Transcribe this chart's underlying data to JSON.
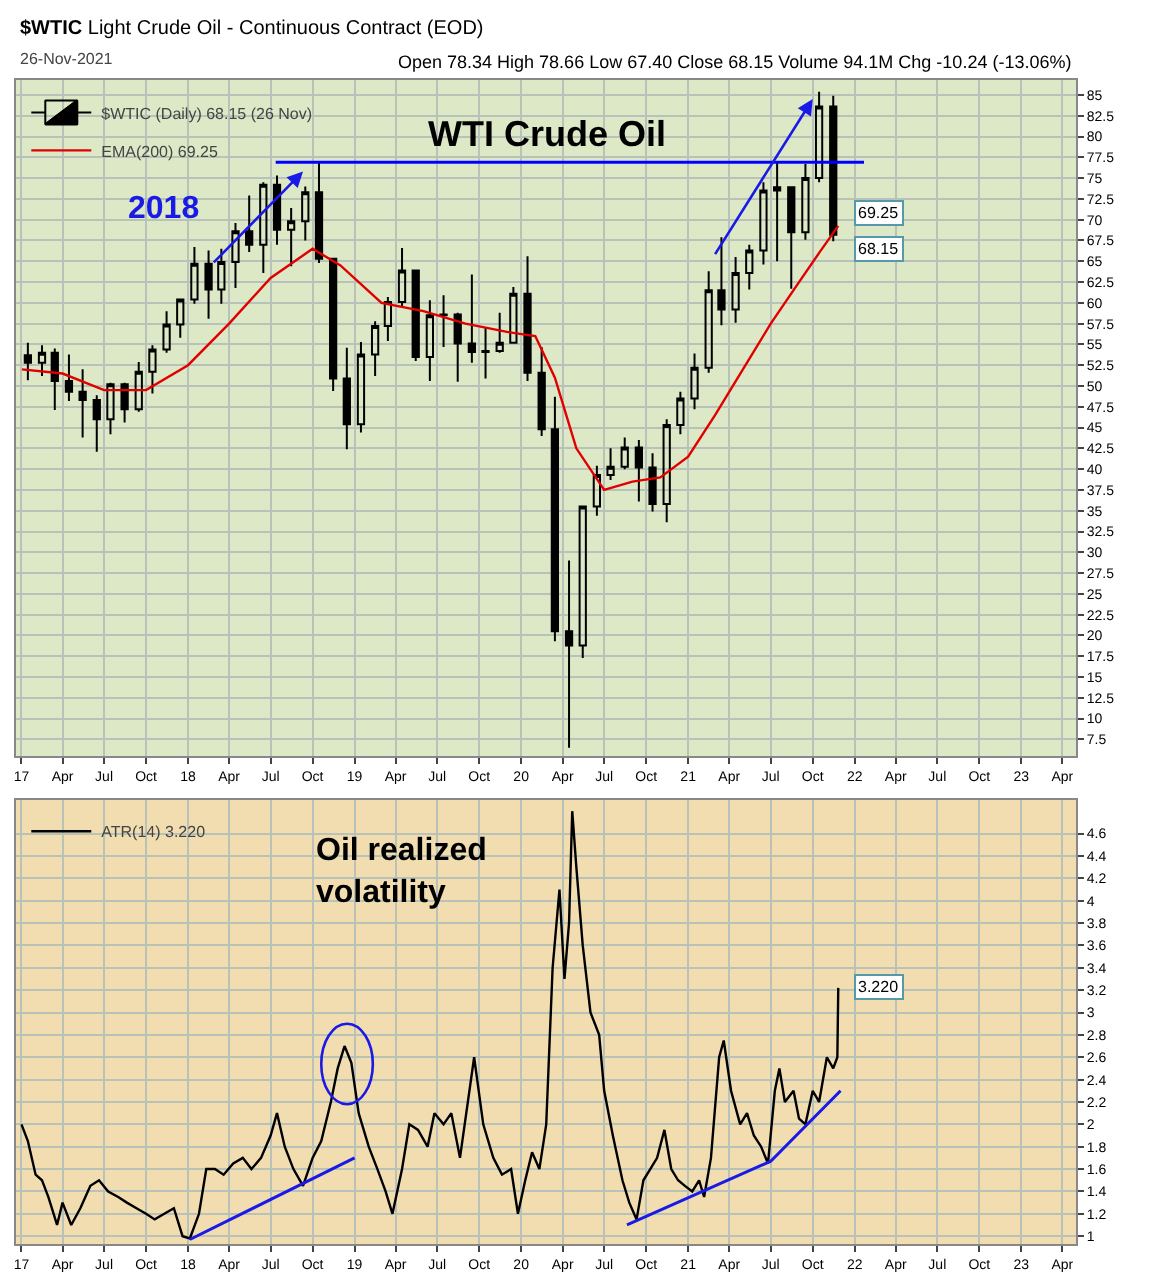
{
  "chart_data": [
    {
      "type": "candlestick",
      "title": "$WTIC Light Crude Oil - Continuous Contract (EOD)",
      "subtitle": "26-Nov-2021",
      "annotations": [
        "Open 78.34 High 78.66 Low 67.40 Close 68.15 Volume 94.1M Chg -10.24 (-13.06%)",
        "2018",
        "WTI Crude Oil",
        {
          "text": "69.25",
          "x": "2021-11-26",
          "y": 69.25
        },
        {
          "text": "68.15",
          "x": "2021-11-26",
          "y": 68.15
        }
      ],
      "series": [
        {
          "name": "$WTIC (Daily) 68.15 (26 Nov)",
          "color": "#000000",
          "x": [
            "2017-01-15",
            "2017-02-15",
            "2017-03-15",
            "2017-04-15",
            "2017-05-15",
            "2017-06-15",
            "2017-07-15",
            "2017-08-15",
            "2017-09-15",
            "2017-10-15",
            "2017-11-15",
            "2017-12-15",
            "2018-01-15",
            "2018-02-15",
            "2018-03-15",
            "2018-04-15",
            "2018-05-15",
            "2018-06-15",
            "2018-07-15",
            "2018-08-15",
            "2018-09-15",
            "2018-10-15",
            "2018-11-15",
            "2018-12-15",
            "2019-01-15",
            "2019-02-15",
            "2019-03-15",
            "2019-04-15",
            "2019-05-15",
            "2019-06-15",
            "2019-07-15",
            "2019-08-15",
            "2019-09-15",
            "2019-10-15",
            "2019-11-15",
            "2019-12-15",
            "2020-01-15",
            "2020-02-15",
            "2020-03-15",
            "2020-04-15",
            "2020-05-15",
            "2020-06-15",
            "2020-07-15",
            "2020-08-15",
            "2020-09-15",
            "2020-10-15",
            "2020-11-15",
            "2020-12-15",
            "2021-01-15",
            "2021-02-15",
            "2021-03-15",
            "2021-04-15",
            "2021-05-15",
            "2021-06-15",
            "2021-07-15",
            "2021-08-15",
            "2021-09-15",
            "2021-10-15",
            "2021-11-15"
          ],
          "ohlc": [
            [
              53.7,
              55.2,
              50.7,
              52.8
            ],
            [
              52.8,
              54.9,
              51.2,
              54.0
            ],
            [
              54.0,
              54.5,
              47.1,
              50.6
            ],
            [
              50.6,
              53.8,
              48.2,
              49.3
            ],
            [
              49.3,
              52.0,
              43.8,
              48.3
            ],
            [
              48.3,
              48.9,
              42.1,
              46.0
            ],
            [
              46.0,
              50.4,
              44.2,
              50.2
            ],
            [
              50.2,
              50.4,
              45.6,
              47.2
            ],
            [
              47.2,
              52.9,
              46.9,
              51.7
            ],
            [
              51.7,
              54.9,
              49.1,
              54.4
            ],
            [
              54.4,
              59.0,
              54.0,
              57.4
            ],
            [
              57.4,
              60.5,
              55.8,
              60.4
            ],
            [
              60.4,
              66.7,
              59.9,
              64.7
            ],
            [
              64.7,
              66.3,
              58.1,
              61.6
            ],
            [
              61.6,
              66.5,
              59.9,
              64.9
            ],
            [
              64.9,
              69.6,
              61.8,
              68.6
            ],
            [
              68.6,
              72.9,
              66.1,
              67.0
            ],
            [
              67.0,
              74.5,
              63.6,
              74.2
            ],
            [
              74.2,
              75.3,
              67.0,
              68.8
            ],
            [
              68.8,
              71.4,
              64.4,
              69.8
            ],
            [
              69.8,
              74.0,
              67.5,
              73.3
            ],
            [
              73.3,
              76.9,
              64.8,
              65.3
            ],
            [
              65.3,
              65.3,
              49.4,
              50.9
            ],
            [
              50.9,
              54.6,
              42.4,
              45.4
            ],
            [
              45.4,
              55.3,
              44.4,
              53.8
            ],
            [
              53.8,
              57.8,
              51.2,
              57.2
            ],
            [
              57.2,
              60.7,
              55.4,
              60.1
            ],
            [
              60.1,
              66.6,
              59.6,
              63.9
            ],
            [
              63.9,
              63.9,
              53.0,
              53.5
            ],
            [
              53.5,
              60.3,
              50.6,
              58.5
            ],
            [
              58.5,
              60.9,
              54.7,
              58.6
            ],
            [
              58.6,
              58.8,
              50.5,
              55.1
            ],
            [
              55.1,
              63.4,
              52.8,
              54.1
            ],
            [
              54.1,
              57.0,
              50.9,
              54.2
            ],
            [
              54.2,
              58.8,
              54.0,
              55.2
            ],
            [
              55.2,
              61.9,
              55.1,
              61.1
            ],
            [
              61.1,
              65.6,
              50.6,
              51.6
            ],
            [
              51.6,
              54.7,
              44.0,
              44.8
            ],
            [
              44.8,
              48.7,
              19.3,
              20.5
            ],
            [
              20.5,
              29.0,
              6.5,
              18.8
            ],
            [
              18.8,
              35.5,
              17.3,
              35.5
            ],
            [
              35.5,
              40.4,
              34.4,
              39.3
            ],
            [
              39.3,
              42.5,
              38.7,
              40.3
            ],
            [
              40.3,
              43.8,
              40.0,
              42.6
            ],
            [
              42.6,
              43.5,
              36.1,
              40.2
            ],
            [
              40.2,
              41.9,
              34.9,
              35.8
            ],
            [
              35.8,
              46.0,
              33.6,
              45.3
            ],
            [
              45.3,
              49.3,
              44.2,
              48.5
            ],
            [
              48.5,
              53.9,
              47.2,
              52.2
            ],
            [
              52.2,
              63.8,
              51.6,
              61.5
            ],
            [
              61.5,
              67.9,
              57.3,
              59.2
            ],
            [
              59.2,
              65.5,
              57.6,
              63.6
            ],
            [
              63.6,
              67.0,
              61.6,
              66.3
            ],
            [
              66.3,
              74.5,
              64.6,
              73.5
            ],
            [
              73.5,
              76.9,
              65.0,
              73.9
            ],
            [
              73.9,
              74.0,
              61.7,
              68.5
            ],
            [
              68.5,
              76.7,
              67.6,
              75.0
            ],
            [
              75.0,
              85.4,
              74.5,
              83.6
            ],
            [
              83.6,
              84.9,
              67.4,
              68.2
            ]
          ]
        },
        {
          "name": "EMA(200) 69.25",
          "type": "line",
          "color": "#e00000",
          "x": [
            "2017-01-02",
            "2017-04-01",
            "2017-07-01",
            "2017-10-01",
            "2018-01-01",
            "2018-04-01",
            "2018-07-01",
            "2018-10-01",
            "2018-12-01",
            "2019-03-01",
            "2019-06-01",
            "2019-09-01",
            "2019-12-01",
            "2020-02-01",
            "2020-03-15",
            "2020-05-01",
            "2020-07-01",
            "2020-09-01",
            "2020-11-01",
            "2021-01-01",
            "2021-03-01",
            "2021-05-01",
            "2021-07-01",
            "2021-09-01",
            "2021-10-15",
            "2021-11-26"
          ],
          "values": [
            52.0,
            51.5,
            49.5,
            49.5,
            52.5,
            57.5,
            63.0,
            66.5,
            64.5,
            60.0,
            59.0,
            57.5,
            56.5,
            56.0,
            51.0,
            42.5,
            37.5,
            38.5,
            39.0,
            41.5,
            46.5,
            52.0,
            57.5,
            62.5,
            66.0,
            69.25
          ]
        }
      ],
      "xlim": [
        "2016-12-20",
        "2023-05-01"
      ],
      "xticks": [
        {
          "value": "2017-01-01",
          "label": "17"
        },
        {
          "value": "2017-04-01",
          "label": "Apr"
        },
        {
          "value": "2017-07-01",
          "label": "Jul"
        },
        {
          "value": "2017-10-01",
          "label": "Oct"
        },
        {
          "value": "2018-01-01",
          "label": "18"
        },
        {
          "value": "2018-04-01",
          "label": "Apr"
        },
        {
          "value": "2018-07-01",
          "label": "Jul"
        },
        {
          "value": "2018-10-01",
          "label": "Oct"
        },
        {
          "value": "2019-01-01",
          "label": "19"
        },
        {
          "value": "2019-04-01",
          "label": "Apr"
        },
        {
          "value": "2019-07-01",
          "label": "Jul"
        },
        {
          "value": "2019-10-01",
          "label": "Oct"
        },
        {
          "value": "2020-01-01",
          "label": "20"
        },
        {
          "value": "2020-04-01",
          "label": "Apr"
        },
        {
          "value": "2020-07-01",
          "label": "Jul"
        },
        {
          "value": "2020-10-01",
          "label": "Oct"
        },
        {
          "value": "2021-01-01",
          "label": "21"
        },
        {
          "value": "2021-04-01",
          "label": "Apr"
        },
        {
          "value": "2021-07-01",
          "label": "Jul"
        },
        {
          "value": "2021-10-01",
          "label": "Oct"
        },
        {
          "value": "2022-01-01",
          "label": "22"
        },
        {
          "value": "2022-04-01",
          "label": "Apr"
        },
        {
          "value": "2022-07-01",
          "label": "Jul"
        },
        {
          "value": "2022-10-01",
          "label": "Oct"
        },
        {
          "value": "2023-01-01",
          "label": "23"
        },
        {
          "value": "2023-04-01",
          "label": "Apr"
        }
      ],
      "ylim": [
        5.5,
        86.8
      ],
      "yticks": [
        7.5,
        10.0,
        12.5,
        15.0,
        17.5,
        20.0,
        22.5,
        25.0,
        27.5,
        30.0,
        32.5,
        35.0,
        37.5,
        40.0,
        42.5,
        45.0,
        47.5,
        50.0,
        52.5,
        55.0,
        57.5,
        60.0,
        62.5,
        65.0,
        67.5,
        70.0,
        72.5,
        75.0,
        77.5,
        80.0,
        82.5,
        85.0
      ],
      "ref_lines": [
        {
          "axis": "y",
          "value": 76.9,
          "color": "#0000ff"
        }
      ],
      "grid": true,
      "legend": "top left",
      "marker": "none",
      "line_style": "solid"
    },
    {
      "type": "line",
      "annotations": [
        "Oil realized\nvolatility",
        {
          "text": "3.220",
          "x": "2021-11-26",
          "y": 3.22
        }
      ],
      "series": [
        {
          "name": "ATR(14) 3.220",
          "color": "#000000",
          "x": [
            "2017-01-01",
            "2017-01-15",
            "2017-02-01",
            "2017-02-15",
            "2017-03-01",
            "2017-03-20",
            "2017-04-01",
            "2017-04-20",
            "2017-05-10",
            "2017-06-01",
            "2017-06-20",
            "2017-07-10",
            "2017-08-01",
            "2017-08-20",
            "2017-09-10",
            "2017-10-01",
            "2017-10-20",
            "2017-11-10",
            "2017-12-01",
            "2017-12-20",
            "2018-01-05",
            "2018-01-25",
            "2018-02-10",
            "2018-03-01",
            "2018-03-20",
            "2018-04-10",
            "2018-05-01",
            "2018-05-20",
            "2018-06-10",
            "2018-07-01",
            "2018-07-15",
            "2018-08-01",
            "2018-08-20",
            "2018-09-10",
            "2018-10-01",
            "2018-10-20",
            "2018-11-10",
            "2018-11-25",
            "2018-12-10",
            "2018-12-25",
            "2019-01-10",
            "2019-02-01",
            "2019-02-20",
            "2019-03-10",
            "2019-03-25",
            "2019-04-15",
            "2019-05-01",
            "2019-05-20",
            "2019-06-10",
            "2019-06-25",
            "2019-07-15",
            "2019-08-01",
            "2019-08-20",
            "2019-09-20",
            "2019-10-10",
            "2019-11-01",
            "2019-11-20",
            "2019-12-10",
            "2019-12-25",
            "2020-01-10",
            "2020-01-25",
            "2020-02-10",
            "2020-02-25",
            "2020-03-10",
            "2020-03-25",
            "2020-04-05",
            "2020-04-15",
            "2020-04-22",
            "2020-05-01",
            "2020-05-15",
            "2020-06-01",
            "2020-06-20",
            "2020-07-01",
            "2020-07-20",
            "2020-08-10",
            "2020-08-25",
            "2020-09-10",
            "2020-09-25",
            "2020-10-10",
            "2020-10-25",
            "2020-11-10",
            "2020-11-25",
            "2020-12-10",
            "2020-12-25",
            "2021-01-10",
            "2021-01-25",
            "2021-02-05",
            "2021-02-20",
            "2021-03-10",
            "2021-03-20",
            "2021-04-05",
            "2021-04-25",
            "2021-05-10",
            "2021-05-25",
            "2021-06-10",
            "2021-06-25",
            "2021-07-10",
            "2021-07-20",
            "2021-08-01",
            "2021-08-20",
            "2021-09-01",
            "2021-09-15",
            "2021-10-01",
            "2021-10-15",
            "2021-11-01",
            "2021-11-15",
            "2021-11-24",
            "2021-11-26"
          ],
          "values": [
            2.0,
            1.85,
            1.55,
            1.5,
            1.35,
            1.1,
            1.3,
            1.1,
            1.25,
            1.45,
            1.5,
            1.4,
            1.35,
            1.3,
            1.25,
            1.2,
            1.15,
            1.2,
            1.25,
            1.0,
            0.98,
            1.2,
            1.6,
            1.6,
            1.55,
            1.65,
            1.7,
            1.6,
            1.7,
            1.9,
            2.1,
            1.8,
            1.6,
            1.45,
            1.7,
            1.85,
            2.2,
            2.5,
            2.7,
            2.55,
            2.1,
            1.8,
            1.6,
            1.4,
            1.2,
            1.6,
            2.0,
            1.95,
            1.8,
            2.1,
            2.0,
            2.1,
            1.7,
            2.6,
            2.0,
            1.7,
            1.55,
            1.6,
            1.2,
            1.5,
            1.75,
            1.6,
            2.0,
            3.4,
            4.1,
            3.3,
            3.8,
            4.8,
            4.3,
            3.6,
            3.0,
            2.8,
            2.3,
            1.9,
            1.5,
            1.3,
            1.15,
            1.5,
            1.6,
            1.7,
            1.95,
            1.6,
            1.5,
            1.45,
            1.4,
            1.5,
            1.35,
            1.7,
            2.6,
            2.75,
            2.3,
            2.0,
            2.1,
            1.9,
            1.8,
            1.65,
            2.3,
            2.5,
            2.2,
            2.3,
            2.05,
            2.0,
            2.3,
            2.2,
            2.6,
            2.5,
            2.6,
            3.22
          ]
        }
      ],
      "xlim": [
        "2016-12-20",
        "2023-05-01"
      ],
      "xticks": [
        {
          "value": "2017-01-01",
          "label": "17"
        },
        {
          "value": "2017-04-01",
          "label": "Apr"
        },
        {
          "value": "2017-07-01",
          "label": "Jul"
        },
        {
          "value": "2017-10-01",
          "label": "Oct"
        },
        {
          "value": "2018-01-01",
          "label": "18"
        },
        {
          "value": "2018-04-01",
          "label": "Apr"
        },
        {
          "value": "2018-07-01",
          "label": "Jul"
        },
        {
          "value": "2018-10-01",
          "label": "Oct"
        },
        {
          "value": "2019-01-01",
          "label": "19"
        },
        {
          "value": "2019-04-01",
          "label": "Apr"
        },
        {
          "value": "2019-07-01",
          "label": "Jul"
        },
        {
          "value": "2019-10-01",
          "label": "Oct"
        },
        {
          "value": "2020-01-01",
          "label": "20"
        },
        {
          "value": "2020-04-01",
          "label": "Apr"
        },
        {
          "value": "2020-07-01",
          "label": "Jul"
        },
        {
          "value": "2020-10-01",
          "label": "Oct"
        },
        {
          "value": "2021-01-01",
          "label": "21"
        },
        {
          "value": "2021-04-01",
          "label": "Apr"
        },
        {
          "value": "2021-07-01",
          "label": "Jul"
        },
        {
          "value": "2021-10-01",
          "label": "Oct"
        },
        {
          "value": "2022-01-01",
          "label": "22"
        },
        {
          "value": "2022-04-01",
          "label": "Apr"
        },
        {
          "value": "2022-07-01",
          "label": "Jul"
        },
        {
          "value": "2022-10-01",
          "label": "Oct"
        },
        {
          "value": "2023-01-01",
          "label": "23"
        },
        {
          "value": "2023-04-01",
          "label": "Apr"
        }
      ],
      "ylim": [
        0.93,
        4.9
      ],
      "yticks": [
        1.0,
        1.2,
        1.4,
        1.6,
        1.8,
        2.0,
        2.2,
        2.4,
        2.6,
        2.8,
        3.0,
        3.2,
        3.4,
        3.6,
        3.8,
        4.0,
        4.2,
        4.4,
        4.6
      ],
      "grid": true,
      "legend": "top left",
      "marker": "none",
      "line_style": "solid"
    }
  ]
}
